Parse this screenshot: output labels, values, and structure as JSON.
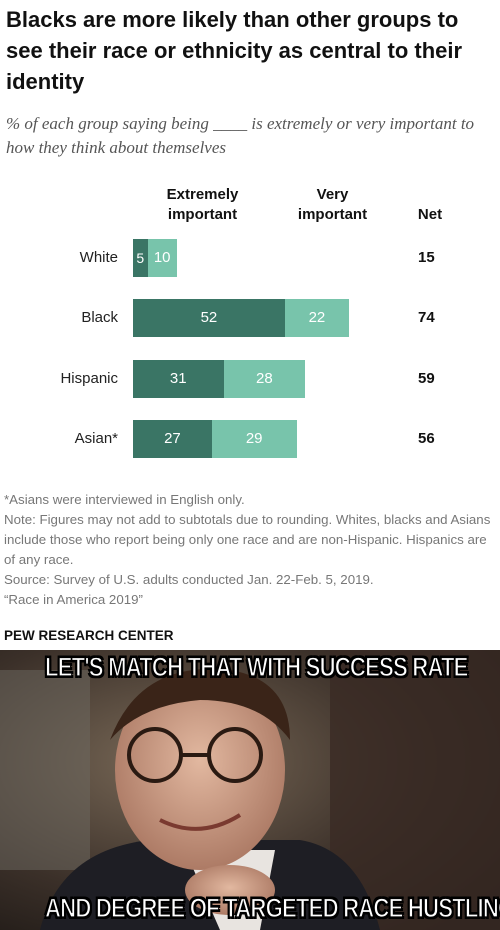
{
  "chart_data": {
    "type": "bar",
    "stacked": true,
    "orientation": "horizontal",
    "title": "Blacks are more likely than other groups to see their race or ethnicity as central to their identity",
    "subtitle": "% of each group saying being ____ is extremely or very important to how they think about themselves",
    "categories": [
      "White",
      "Black",
      "Hispanic",
      "Asian*"
    ],
    "series": [
      {
        "name": "Extremely important",
        "color": "#3a7565",
        "values": [
          5,
          52,
          31,
          27
        ]
      },
      {
        "name": "Very important",
        "color": "#78c4ab",
        "values": [
          10,
          22,
          28,
          29
        ]
      }
    ],
    "net_label": "Net",
    "net": [
      15,
      74,
      59,
      56
    ]
  },
  "notes": [
    "*Asians were interviewed in English only.",
    "Note: Figures may not add to subtotals due to rounding. Whites, blacks and Asians include those who report being only one race and are non-Hispanic. Hispanics are of any race.",
    "Source: Survey of U.S. adults conducted Jan. 22-Feb. 5, 2019.",
    "“Race in America 2019”"
  ],
  "organization": "PEW RESEARCH CENTER",
  "meme": {
    "top": "LET'S MATCH THAT WITH SUCCESS RATE",
    "bottom": "AND DEGREE OF TARGETED RACE HUSTLING"
  }
}
